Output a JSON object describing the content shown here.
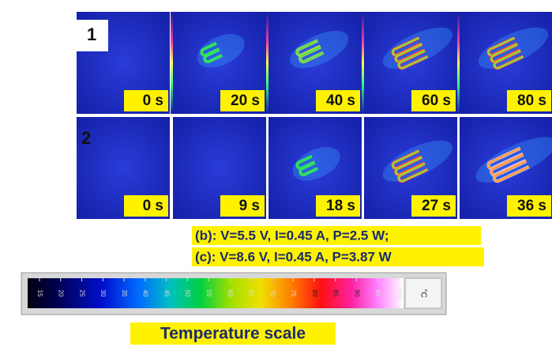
{
  "rows": [
    {
      "label": "1",
      "frames": [
        "0 s",
        "20 s",
        "40 s",
        "60 s",
        "80 s"
      ]
    },
    {
      "label": "2",
      "frames": [
        "0 s",
        "9 s",
        "18 s",
        "27 s",
        "36 s"
      ]
    }
  ],
  "caption": [
    "(b): V=5.5 V, I=0.45 A, P=2.5 W;",
    "(c): V=8.6 V, I=0.45 A, P=3.87 W"
  ],
  "scale": {
    "labels": [
      "15",
      "20",
      "25",
      "30",
      "35",
      "40",
      "45",
      "50",
      "55",
      "60",
      "65",
      "70",
      "75",
      "80",
      "85",
      "90",
      "95",
      "100"
    ],
    "unit": "°C",
    "title": "Temperature scale"
  }
}
